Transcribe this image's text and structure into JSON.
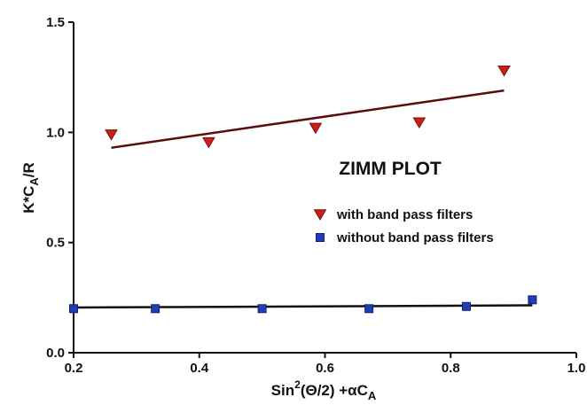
{
  "chart_data": {
    "type": "scatter",
    "title": "ZIMM PLOT",
    "xlabel": {
      "base": "Sin",
      "sup": "2",
      "mid": "(Θ/2)   +αC",
      "sub": "A"
    },
    "ylabel": {
      "pre": "K*C",
      "sub": "A",
      "post": "/R"
    },
    "xlim": [
      0.2,
      1.0
    ],
    "ylim": [
      0.0,
      1.5
    ],
    "xticks": [
      "0.2",
      "0.4",
      "0.6",
      "0.8",
      "1.0"
    ],
    "yticks": [
      "0.0",
      "0.5",
      "1.0",
      "1.5"
    ],
    "grid": false,
    "legend_position": "center-right",
    "series": [
      {
        "name": "with band pass filters",
        "marker": "triangle-down",
        "color": "#cc1f1a",
        "line_color": "#5a0d0d",
        "x": [
          0.26,
          0.415,
          0.585,
          0.75,
          0.885
        ],
        "y": [
          0.99,
          0.955,
          1.02,
          1.045,
          1.28
        ],
        "fit": {
          "x": [
            0.26,
            0.885
          ],
          "y": [
            0.93,
            1.19
          ]
        }
      },
      {
        "name": "without band pass filters",
        "marker": "square",
        "color": "#1f3fb0",
        "line_color": "#111111",
        "x": [
          0.2,
          0.33,
          0.5,
          0.67,
          0.825,
          0.93
        ],
        "y": [
          0.2,
          0.2,
          0.2,
          0.2,
          0.21,
          0.24
        ],
        "fit": {
          "x": [
            0.2,
            0.93
          ],
          "y": [
            0.205,
            0.215
          ]
        }
      }
    ]
  }
}
